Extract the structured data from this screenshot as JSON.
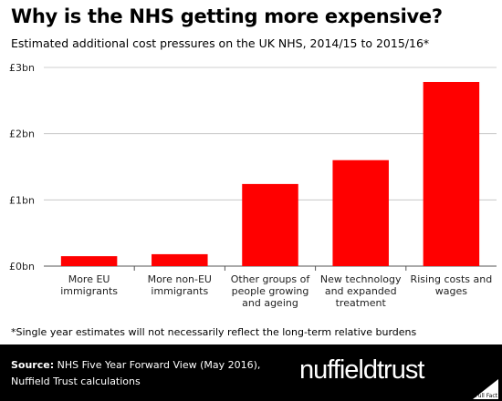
{
  "title": "Why is the NHS getting more expensive?",
  "subtitle": "Estimated additional cost pressures on the UK NHS, 2014/15 to 2015/16*",
  "colors": {
    "bar": "#ff0000",
    "grid": "#bfbfbf",
    "footer_bg": "#000000"
  },
  "chart_data": {
    "type": "bar",
    "categories": [
      "More EU immigrants",
      "More non-EU immigrants",
      "Other groups of people growing and ageing",
      "New technology and expanded treatment",
      "Rising costs and wages"
    ],
    "category_lines": [
      [
        "More EU",
        "immigrants"
      ],
      [
        "More non-EU",
        "immigrants"
      ],
      [
        "Other groups of",
        "people growing",
        "and ageing"
      ],
      [
        "New technology",
        "and expanded",
        "treatment"
      ],
      [
        "Rising costs and",
        "wages"
      ]
    ],
    "values": [
      0.15,
      0.18,
      1.24,
      1.6,
      2.78
    ],
    "unit": "£bn",
    "ylim": [
      0,
      3
    ],
    "yticks": [
      0,
      1,
      2,
      3
    ],
    "ytick_labels": [
      "£0bn",
      "£1bn",
      "£2bn",
      "£3bn"
    ],
    "grid": true,
    "xlabel": "",
    "ylabel": ""
  },
  "footnote": "*Single year estimates will not necessarily reflect the long-term relative burdens",
  "footer": {
    "source_label": "Source:",
    "source_line1": " NHS Five Year Forward View (May 2016),",
    "source_line2": "Nuffield Trust calculations",
    "logo_bold": "nuffield",
    "logo_light": "trust",
    "badge": "Full Fact",
    "badge_icon": "full-fact-logo-icon"
  }
}
